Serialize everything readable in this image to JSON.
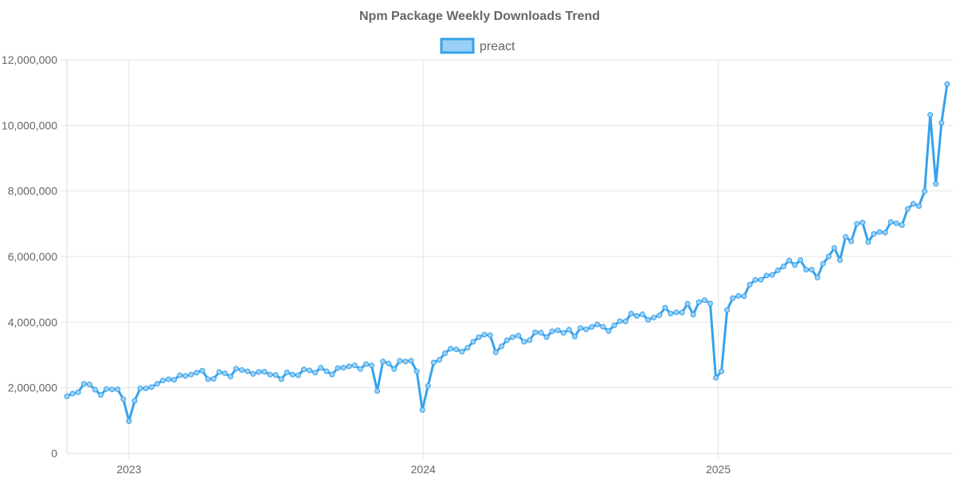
{
  "chart_data": {
    "type": "line",
    "title": "Npm Package Weekly Downloads Trend",
    "legend_position": "top",
    "grid": true,
    "x_axis": {
      "type": "time",
      "range": [
        "2022-10-16",
        "2025-10-19"
      ],
      "tick_labels": [
        "2023",
        "2024",
        "2025"
      ],
      "tick_dates": [
        "2023-01-01",
        "2024-01-01",
        "2025-01-01"
      ]
    },
    "y_axis": {
      "range": [
        0,
        12000000
      ],
      "tick_labels": [
        "0",
        "2,000,000",
        "4,000,000",
        "6,000,000",
        "8,000,000",
        "10,000,000",
        "12,000,000"
      ]
    },
    "series": [
      {
        "name": "preact",
        "color": "#36a2eb",
        "fill": "#9ad0f5",
        "start_date": "2022-10-16",
        "interval_days": 7,
        "values": [
          1740000,
          1820000,
          1860000,
          2120000,
          2100000,
          1940000,
          1780000,
          1960000,
          1950000,
          1950000,
          1650000,
          980000,
          1600000,
          1980000,
          1980000,
          2020000,
          2120000,
          2220000,
          2260000,
          2240000,
          2380000,
          2360000,
          2400000,
          2460000,
          2520000,
          2260000,
          2270000,
          2480000,
          2440000,
          2340000,
          2580000,
          2540000,
          2500000,
          2420000,
          2480000,
          2490000,
          2400000,
          2390000,
          2260000,
          2470000,
          2400000,
          2380000,
          2560000,
          2530000,
          2460000,
          2610000,
          2500000,
          2400000,
          2600000,
          2610000,
          2650000,
          2680000,
          2570000,
          2720000,
          2680000,
          1900000,
          2800000,
          2740000,
          2570000,
          2820000,
          2800000,
          2820000,
          2500000,
          1320000,
          2060000,
          2770000,
          2850000,
          3050000,
          3190000,
          3170000,
          3100000,
          3220000,
          3400000,
          3540000,
          3620000,
          3600000,
          3080000,
          3260000,
          3450000,
          3540000,
          3590000,
          3400000,
          3450000,
          3690000,
          3680000,
          3540000,
          3720000,
          3750000,
          3670000,
          3770000,
          3560000,
          3820000,
          3780000,
          3850000,
          3930000,
          3860000,
          3730000,
          3900000,
          4030000,
          4020000,
          4260000,
          4190000,
          4240000,
          4070000,
          4140000,
          4210000,
          4440000,
          4260000,
          4300000,
          4290000,
          4560000,
          4230000,
          4610000,
          4670000,
          4570000,
          2300000,
          2500000,
          4370000,
          4730000,
          4800000,
          4790000,
          5140000,
          5290000,
          5290000,
          5420000,
          5440000,
          5580000,
          5700000,
          5880000,
          5740000,
          5890000,
          5600000,
          5600000,
          5360000,
          5780000,
          6000000,
          6260000,
          5890000,
          6600000,
          6460000,
          7000000,
          7040000,
          6440000,
          6690000,
          6750000,
          6730000,
          7050000,
          7010000,
          6960000,
          7450000,
          7610000,
          7540000,
          7990000,
          10320000,
          8220000,
          10080000,
          11260000
        ]
      }
    ]
  }
}
